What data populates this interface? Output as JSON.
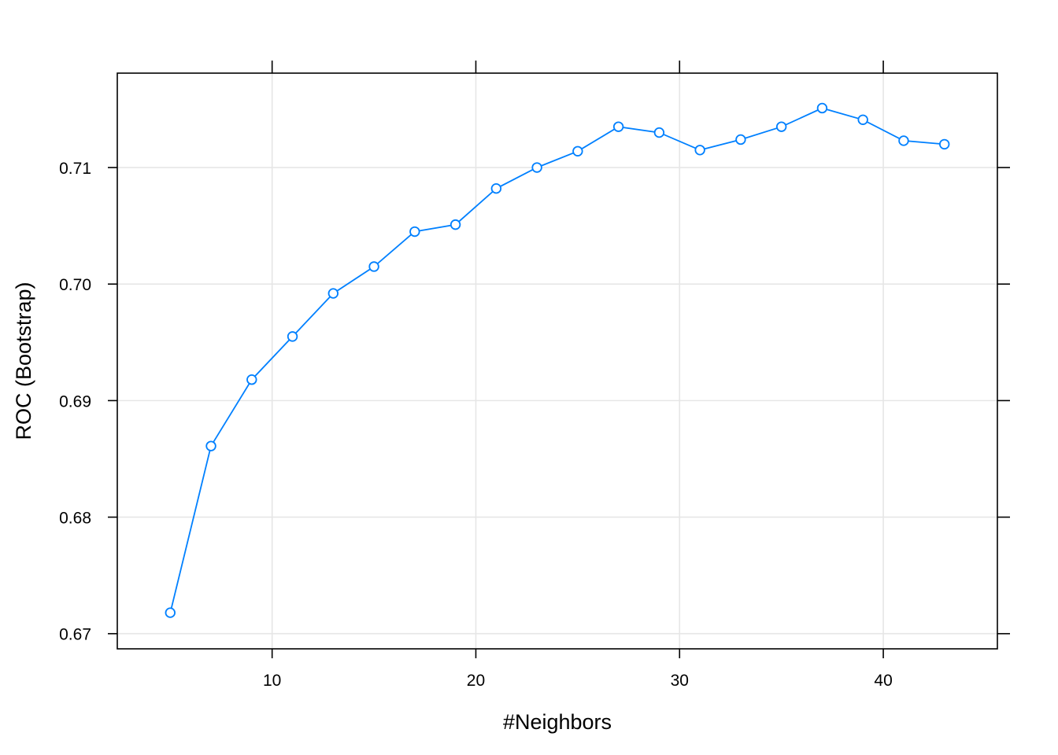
{
  "chart_data": {
    "type": "line",
    "xlabel": "#Neighbors",
    "ylabel": "ROC (Bootstrap)",
    "xlim": [
      2.4,
      45.6
    ],
    "ylim": [
      0.6687,
      0.7181
    ],
    "xticks": [
      10,
      20,
      30,
      40
    ],
    "xtick_labels": [
      "10",
      "20",
      "30",
      "40"
    ],
    "yticks": [
      0.67,
      0.68,
      0.69,
      0.7,
      0.71
    ],
    "ytick_labels": [
      "0.67",
      "0.68",
      "0.69",
      "0.70",
      "0.71"
    ],
    "grid": true,
    "legend": "none",
    "series": [
      {
        "color": "#0080ff",
        "marker": "open-circle",
        "x": [
          5,
          7,
          9,
          11,
          13,
          15,
          17,
          19,
          21,
          23,
          25,
          27,
          29,
          31,
          33,
          35,
          37,
          39,
          41,
          43
        ],
        "values": [
          0.6718,
          0.6861,
          0.6918,
          0.6955,
          0.6992,
          0.7015,
          0.7045,
          0.7051,
          0.7082,
          0.71,
          0.7114,
          0.7135,
          0.713,
          0.7115,
          0.7124,
          0.7135,
          0.7151,
          0.7141,
          0.7123,
          0.712
        ]
      }
    ]
  }
}
